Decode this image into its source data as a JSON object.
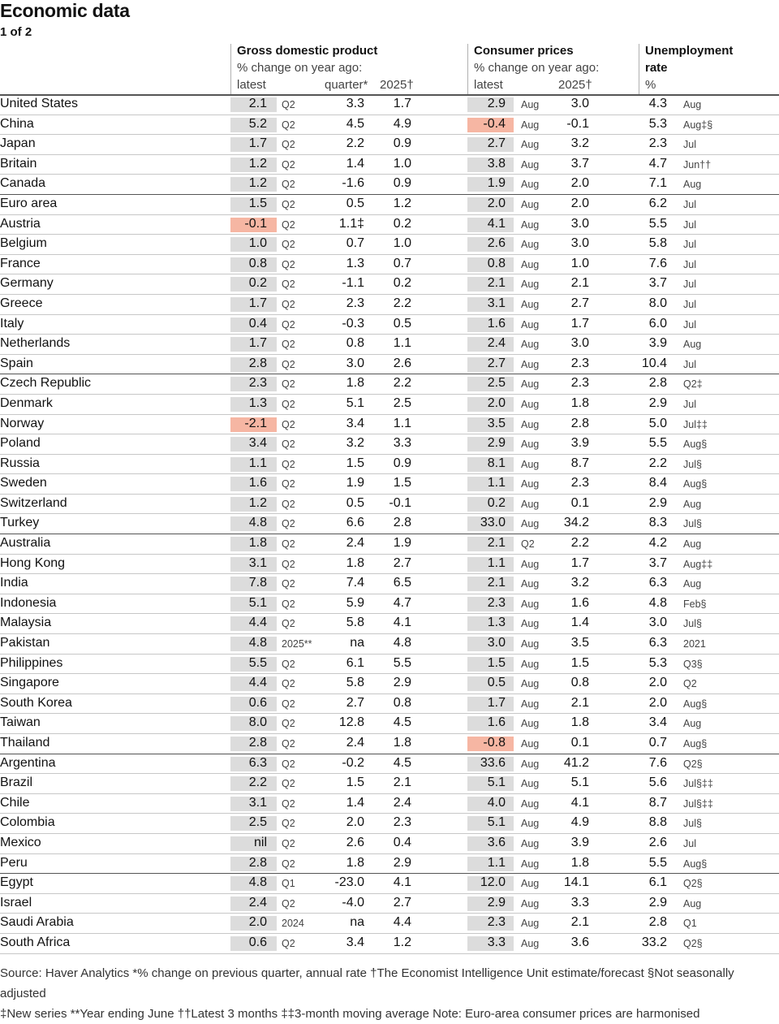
{
  "title": "Economic data",
  "subtitle": "1 of 2",
  "headers": {
    "gdp_title": "Gross domestic product",
    "gdp_sub": "% change on year ago:",
    "gdp_latest": "latest",
    "gdp_quarter": "quarter*",
    "gdp_2025": "2025†",
    "cpi_title": "Consumer prices",
    "cpi_sub": "% change on year ago:",
    "cpi_latest": "latest",
    "cpi_2025": "2025†",
    "unemp_title": "Unemployment",
    "unemp_title2": "rate",
    "unemp_sub": "%"
  },
  "colors": {
    "highlight_gray": "#dcdcdc",
    "highlight_negative": "#f6b6a3"
  },
  "rows": [
    {
      "c": "United States",
      "g": "2.1",
      "gp": "Q2",
      "gq": "3.3",
      "gf": "1.7",
      "p": "2.9",
      "pp": "Aug",
      "pf": "3.0",
      "u": "4.3",
      "up": "Aug",
      "grp": false
    },
    {
      "c": "China",
      "g": "5.2",
      "gp": "Q2",
      "gq": "4.5",
      "gf": "4.9",
      "p": "-0.4",
      "pp": "Aug",
      "pf": "-0.1",
      "u": "5.3",
      "up": "Aug‡§",
      "grp": false,
      "pneg": true
    },
    {
      "c": "Japan",
      "g": "1.7",
      "gp": "Q2",
      "gq": "2.2",
      "gf": "0.9",
      "p": "2.7",
      "pp": "Aug",
      "pf": "3.2",
      "u": "2.3",
      "up": "Jul",
      "grp": false
    },
    {
      "c": "Britain",
      "g": "1.2",
      "gp": "Q2",
      "gq": "1.4",
      "gf": "1.0",
      "p": "3.8",
      "pp": "Aug",
      "pf": "3.7",
      "u": "4.7",
      "up": "Jun††",
      "grp": false
    },
    {
      "c": "Canada",
      "g": "1.2",
      "gp": "Q2",
      "gq": "-1.6",
      "gf": "0.9",
      "p": "1.9",
      "pp": "Aug",
      "pf": "2.0",
      "u": "7.1",
      "up": "Aug",
      "grp": true
    },
    {
      "c": "Euro area",
      "g": "1.5",
      "gp": "Q2",
      "gq": "0.5",
      "gf": "1.2",
      "p": "2.0",
      "pp": "Aug",
      "pf": "2.0",
      "u": "6.2",
      "up": "Jul",
      "grp": false
    },
    {
      "c": "Austria",
      "g": "-0.1",
      "gp": "Q2",
      "gq": "1.1‡",
      "gf": "0.2",
      "p": "4.1",
      "pp": "Aug",
      "pf": "3.0",
      "u": "5.5",
      "up": "Jul",
      "grp": false,
      "gneg": true
    },
    {
      "c": "Belgium",
      "g": "1.0",
      "gp": "Q2",
      "gq": "0.7",
      "gf": "1.0",
      "p": "2.6",
      "pp": "Aug",
      "pf": "3.0",
      "u": "5.8",
      "up": "Jul",
      "grp": false
    },
    {
      "c": "France",
      "g": "0.8",
      "gp": "Q2",
      "gq": "1.3",
      "gf": "0.7",
      "p": "0.8",
      "pp": "Aug",
      "pf": "1.0",
      "u": "7.6",
      "up": "Jul",
      "grp": false
    },
    {
      "c": "Germany",
      "g": "0.2",
      "gp": "Q2",
      "gq": "-1.1",
      "gf": "0.2",
      "p": "2.1",
      "pp": "Aug",
      "pf": "2.1",
      "u": "3.7",
      "up": "Jul",
      "grp": false
    },
    {
      "c": "Greece",
      "g": "1.7",
      "gp": "Q2",
      "gq": "2.3",
      "gf": "2.2",
      "p": "3.1",
      "pp": "Aug",
      "pf": "2.7",
      "u": "8.0",
      "up": "Jul",
      "grp": false
    },
    {
      "c": "Italy",
      "g": "0.4",
      "gp": "Q2",
      "gq": "-0.3",
      "gf": "0.5",
      "p": "1.6",
      "pp": "Aug",
      "pf": "1.7",
      "u": "6.0",
      "up": "Jul",
      "grp": false
    },
    {
      "c": "Netherlands",
      "g": "1.7",
      "gp": "Q2",
      "gq": "0.8",
      "gf": "1.1",
      "p": "2.4",
      "pp": "Aug",
      "pf": "3.0",
      "u": "3.9",
      "up": "Aug",
      "grp": false
    },
    {
      "c": "Spain",
      "g": "2.8",
      "gp": "Q2",
      "gq": "3.0",
      "gf": "2.6",
      "p": "2.7",
      "pp": "Aug",
      "pf": "2.3",
      "u": "10.4",
      "up": "Jul",
      "grp": true
    },
    {
      "c": "Czech Republic",
      "g": "2.3",
      "gp": "Q2",
      "gq": "1.8",
      "gf": "2.2",
      "p": "2.5",
      "pp": "Aug",
      "pf": "2.3",
      "u": "2.8",
      "up": "Q2‡",
      "grp": false
    },
    {
      "c": "Denmark",
      "g": "1.3",
      "gp": "Q2",
      "gq": "5.1",
      "gf": "2.5",
      "p": "2.0",
      "pp": "Aug",
      "pf": "1.8",
      "u": "2.9",
      "up": "Jul",
      "grp": false
    },
    {
      "c": "Norway",
      "g": "-2.1",
      "gp": "Q2",
      "gq": "3.4",
      "gf": "1.1",
      "p": "3.5",
      "pp": "Aug",
      "pf": "2.8",
      "u": "5.0",
      "up": "Jul‡‡",
      "grp": false,
      "gneg": true
    },
    {
      "c": "Poland",
      "g": "3.4",
      "gp": "Q2",
      "gq": "3.2",
      "gf": "3.3",
      "p": "2.9",
      "pp": "Aug",
      "pf": "3.9",
      "u": "5.5",
      "up": "Aug§",
      "grp": false
    },
    {
      "c": "Russia",
      "g": "1.1",
      "gp": "Q2",
      "gq": "1.5",
      "gf": "0.9",
      "p": "8.1",
      "pp": "Aug",
      "pf": "8.7",
      "u": "2.2",
      "up": "Jul§",
      "grp": false
    },
    {
      "c": "Sweden",
      "g": "1.6",
      "gp": "Q2",
      "gq": "1.9",
      "gf": "1.5",
      "p": "1.1",
      "pp": "Aug",
      "pf": "2.3",
      "u": "8.4",
      "up": "Aug§",
      "grp": false
    },
    {
      "c": "Switzerland",
      "g": "1.2",
      "gp": "Q2",
      "gq": "0.5",
      "gf": "-0.1",
      "p": "0.2",
      "pp": "Aug",
      "pf": "0.1",
      "u": "2.9",
      "up": "Aug",
      "grp": false
    },
    {
      "c": "Turkey",
      "g": "4.8",
      "gp": "Q2",
      "gq": "6.6",
      "gf": "2.8",
      "p": "33.0",
      "pp": "Aug",
      "pf": "34.2",
      "u": "8.3",
      "up": "Jul§",
      "grp": true
    },
    {
      "c": "Australia",
      "g": "1.8",
      "gp": "Q2",
      "gq": "2.4",
      "gf": "1.9",
      "p": "2.1",
      "pp": "Q2",
      "pf": "2.2",
      "u": "4.2",
      "up": "Aug",
      "grp": false
    },
    {
      "c": "Hong Kong",
      "g": "3.1",
      "gp": "Q2",
      "gq": "1.8",
      "gf": "2.7",
      "p": "1.1",
      "pp": "Aug",
      "pf": "1.7",
      "u": "3.7",
      "up": "Aug‡‡",
      "grp": false
    },
    {
      "c": "India",
      "g": "7.8",
      "gp": "Q2",
      "gq": "7.4",
      "gf": "6.5",
      "p": "2.1",
      "pp": "Aug",
      "pf": "3.2",
      "u": "6.3",
      "up": "Aug",
      "grp": false
    },
    {
      "c": "Indonesia",
      "g": "5.1",
      "gp": "Q2",
      "gq": "5.9",
      "gf": "4.7",
      "p": "2.3",
      "pp": "Aug",
      "pf": "1.6",
      "u": "4.8",
      "up": "Feb§",
      "grp": false
    },
    {
      "c": "Malaysia",
      "g": "4.4",
      "gp": "Q2",
      "gq": "5.8",
      "gf": "4.1",
      "p": "1.3",
      "pp": "Aug",
      "pf": "1.4",
      "u": "3.0",
      "up": "Jul§",
      "grp": false
    },
    {
      "c": "Pakistan",
      "g": "4.8",
      "gp": "2025**",
      "gq": "na",
      "gf": "4.8",
      "p": "3.0",
      "pp": "Aug",
      "pf": "3.5",
      "u": "6.3",
      "up": "2021",
      "grp": false
    },
    {
      "c": "Philippines",
      "g": "5.5",
      "gp": "Q2",
      "gq": "6.1",
      "gf": "5.5",
      "p": "1.5",
      "pp": "Aug",
      "pf": "1.5",
      "u": "5.3",
      "up": "Q3§",
      "grp": false
    },
    {
      "c": "Singapore",
      "g": "4.4",
      "gp": "Q2",
      "gq": "5.8",
      "gf": "2.9",
      "p": "0.5",
      "pp": "Aug",
      "pf": "0.8",
      "u": "2.0",
      "up": "Q2",
      "grp": false
    },
    {
      "c": "South Korea",
      "g": "0.6",
      "gp": "Q2",
      "gq": "2.7",
      "gf": "0.8",
      "p": "1.7",
      "pp": "Aug",
      "pf": "2.1",
      "u": "2.0",
      "up": "Aug§",
      "grp": false
    },
    {
      "c": "Taiwan",
      "g": "8.0",
      "gp": "Q2",
      "gq": "12.8",
      "gf": "4.5",
      "p": "1.6",
      "pp": "Aug",
      "pf": "1.8",
      "u": "3.4",
      "up": "Aug",
      "grp": false
    },
    {
      "c": "Thailand",
      "g": "2.8",
      "gp": "Q2",
      "gq": "2.4",
      "gf": "1.8",
      "p": "-0.8",
      "pp": "Aug",
      "pf": "0.1",
      "u": "0.7",
      "up": "Aug§",
      "grp": true,
      "pneg": true
    },
    {
      "c": "Argentina",
      "g": "6.3",
      "gp": "Q2",
      "gq": "-0.2",
      "gf": "4.5",
      "p": "33.6",
      "pp": "Aug",
      "pf": "41.2",
      "u": "7.6",
      "up": "Q2§",
      "grp": false
    },
    {
      "c": "Brazil",
      "g": "2.2",
      "gp": "Q2",
      "gq": "1.5",
      "gf": "2.1",
      "p": "5.1",
      "pp": "Aug",
      "pf": "5.1",
      "u": "5.6",
      "up": "Jul§‡‡",
      "grp": false
    },
    {
      "c": "Chile",
      "g": "3.1",
      "gp": "Q2",
      "gq": "1.4",
      "gf": "2.4",
      "p": "4.0",
      "pp": "Aug",
      "pf": "4.1",
      "u": "8.7",
      "up": "Jul§‡‡",
      "grp": false
    },
    {
      "c": "Colombia",
      "g": "2.5",
      "gp": "Q2",
      "gq": "2.0",
      "gf": "2.3",
      "p": "5.1",
      "pp": "Aug",
      "pf": "4.9",
      "u": "8.8",
      "up": "Jul§",
      "grp": false
    },
    {
      "c": "Mexico",
      "g": "nil",
      "gp": "Q2",
      "gq": "2.6",
      "gf": "0.4",
      "p": "3.6",
      "pp": "Aug",
      "pf": "3.9",
      "u": "2.6",
      "up": "Jul",
      "grp": false
    },
    {
      "c": "Peru",
      "g": "2.8",
      "gp": "Q2",
      "gq": "1.8",
      "gf": "2.9",
      "p": "1.1",
      "pp": "Aug",
      "pf": "1.8",
      "u": "5.5",
      "up": "Aug§",
      "grp": true
    },
    {
      "c": "Egypt",
      "g": "4.8",
      "gp": "Q1",
      "gq": "-23.0",
      "gf": "4.1",
      "p": "12.0",
      "pp": "Aug",
      "pf": "14.1",
      "u": "6.1",
      "up": "Q2§",
      "grp": false
    },
    {
      "c": "Israel",
      "g": "2.4",
      "gp": "Q2",
      "gq": "-4.0",
      "gf": "2.7",
      "p": "2.9",
      "pp": "Aug",
      "pf": "3.3",
      "u": "2.9",
      "up": "Aug",
      "grp": false
    },
    {
      "c": "Saudi Arabia",
      "g": "2.0",
      "gp": "2024",
      "gq": "na",
      "gf": "4.4",
      "p": "2.3",
      "pp": "Aug",
      "pf": "2.1",
      "u": "2.8",
      "up": "Q1",
      "grp": false
    },
    {
      "c": "South Africa",
      "g": "0.6",
      "gp": "Q2",
      "gq": "3.4",
      "gf": "1.2",
      "p": "3.3",
      "pp": "Aug",
      "pf": "3.6",
      "u": "33.2",
      "up": "Q2§",
      "grp": false
    }
  ],
  "footer": {
    "line1": "Source: Haver Analytics  *% change on previous quarter, annual rate †The Economist Intelligence Unit estimate/forecast §Not seasonally adjusted",
    "line2": "‡New series **Year ending June ††Latest 3 months ‡‡3-month moving average Note: Euro-area consumer prices are harmonised"
  }
}
